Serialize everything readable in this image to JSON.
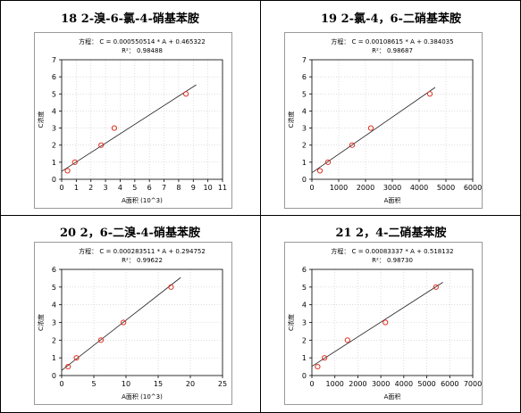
{
  "panels": [
    {
      "title": "18 2-溴-6-氯-4-硝基苯胺",
      "chart_data": {
        "type": "scatter",
        "equation": "方程： C = 0.000550514 * A + 0.465322",
        "r2": "R²： 0.98488",
        "xlabel": "A面积 (10^3)",
        "ylabel": "C浓度",
        "xlim": [
          0,
          11
        ],
        "ylim": [
          0,
          7
        ],
        "xticks": [
          0,
          1,
          2,
          3,
          4,
          5,
          6,
          7,
          8,
          9,
          10,
          11
        ],
        "yticks": [
          0,
          1,
          2,
          3,
          4,
          5,
          6,
          7
        ],
        "grid": true,
        "points": [
          [
            0.4,
            0.5
          ],
          [
            0.9,
            1.0
          ],
          [
            2.7,
            2.0
          ],
          [
            3.6,
            3.0
          ],
          [
            8.5,
            5.0
          ]
        ],
        "fit": {
          "x": [
            0,
            9.2
          ],
          "y": [
            0.465322,
            5.53
          ]
        }
      }
    },
    {
      "title": "19 2-氯-4，6-二硝基苯胺",
      "chart_data": {
        "type": "scatter",
        "equation": "方程： C = 0.00108615 * A + 0.384035",
        "r2": "R²： 0.98687",
        "xlabel": "A面积",
        "ylabel": "C浓度",
        "xlim": [
          0,
          6000
        ],
        "ylim": [
          0,
          7
        ],
        "xticks": [
          0,
          1000,
          2000,
          3000,
          4000,
          5000,
          6000
        ],
        "yticks": [
          0,
          1,
          2,
          3,
          4,
          5,
          6,
          7
        ],
        "grid": true,
        "points": [
          [
            300,
            0.5
          ],
          [
            600,
            1.0
          ],
          [
            1500,
            2.0
          ],
          [
            2200,
            3.0
          ],
          [
            4400,
            5.0
          ]
        ],
        "fit": {
          "x": [
            0,
            4600
          ],
          "y": [
            0.384035,
            5.38
          ]
        }
      }
    },
    {
      "title": "20 2，6-二溴-4-硝基苯胺",
      "chart_data": {
        "type": "scatter",
        "equation": "方程： C = 0.000283511 * A + 0.294752",
        "r2": "R²： 0.99622",
        "xlabel": "A面积 (10^3)",
        "ylabel": "C浓度",
        "xlim": [
          0,
          25
        ],
        "ylim": [
          0,
          6
        ],
        "xticks": [
          0,
          5,
          10,
          15,
          20,
          25
        ],
        "yticks": [
          0,
          1,
          2,
          3,
          4,
          5,
          6
        ],
        "grid": true,
        "points": [
          [
            1.0,
            0.5
          ],
          [
            2.3,
            1.0
          ],
          [
            6.1,
            2.0
          ],
          [
            9.6,
            3.0
          ],
          [
            17.0,
            5.0
          ]
        ],
        "fit": {
          "x": [
            0,
            18.5
          ],
          "y": [
            0.294752,
            5.54
          ]
        }
      }
    },
    {
      "title": "21 2，4-二硝基苯胺",
      "chart_data": {
        "type": "scatter",
        "equation": "方程： C = 0.00083337 * A + 0.518132",
        "r2": "R²： 0.98730",
        "xlabel": "A面积",
        "ylabel": "C浓度",
        "xlim": [
          0,
          7000
        ],
        "ylim": [
          0,
          6
        ],
        "xticks": [
          0,
          1000,
          2000,
          3000,
          4000,
          5000,
          6000,
          7000
        ],
        "yticks": [
          0,
          1,
          2,
          3,
          4,
          5,
          6
        ],
        "grid": true,
        "points": [
          [
            250,
            0.5
          ],
          [
            550,
            1.0
          ],
          [
            1550,
            2.0
          ],
          [
            3200,
            3.0
          ],
          [
            5400,
            5.0
          ]
        ],
        "fit": {
          "x": [
            0,
            5700
          ],
          "y": [
            0.518132,
            5.27
          ]
        }
      }
    }
  ]
}
